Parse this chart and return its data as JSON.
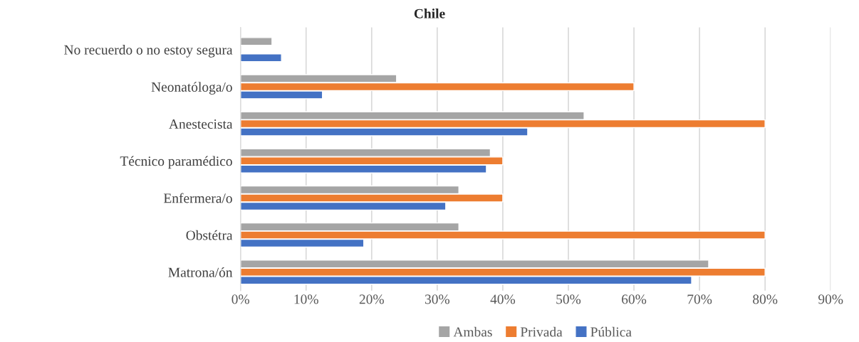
{
  "chart_data": {
    "type": "bar",
    "orientation": "horizontal",
    "title": "Chile",
    "categories": [
      "No recuerdo o no estoy segura",
      "Neonatóloga/o",
      "Anestecista",
      "Técnico paramédico",
      "Enfermera/o",
      "Obstétra",
      "Matrona/ón"
    ],
    "series": [
      {
        "name": "Ambas",
        "color": "#a5a5a5",
        "values": [
          4.8,
          23.8,
          52.4,
          38.1,
          33.3,
          33.3,
          71.4
        ]
      },
      {
        "name": "Privada",
        "color": "#ed7d31",
        "values": [
          null,
          60,
          80,
          40,
          40,
          80,
          80
        ]
      },
      {
        "name": "Pública",
        "color": "#4472c4",
        "values": [
          6.25,
          12.5,
          43.8,
          37.5,
          31.3,
          18.8,
          68.8
        ]
      }
    ],
    "xlim": [
      0,
      90
    ],
    "xticks": [
      {
        "value": 0,
        "label": "0%"
      },
      {
        "value": 10,
        "label": "10%"
      },
      {
        "value": 20,
        "label": "20%"
      },
      {
        "value": 30,
        "label": "30%"
      },
      {
        "value": 40,
        "label": "40%"
      },
      {
        "value": 50,
        "label": "50%"
      },
      {
        "value": 60,
        "label": "60%"
      },
      {
        "value": 70,
        "label": "70%"
      },
      {
        "value": 80,
        "label": "80%"
      },
      {
        "value": 90,
        "label": "90%"
      }
    ],
    "grid": "x",
    "legend": "bottom"
  }
}
